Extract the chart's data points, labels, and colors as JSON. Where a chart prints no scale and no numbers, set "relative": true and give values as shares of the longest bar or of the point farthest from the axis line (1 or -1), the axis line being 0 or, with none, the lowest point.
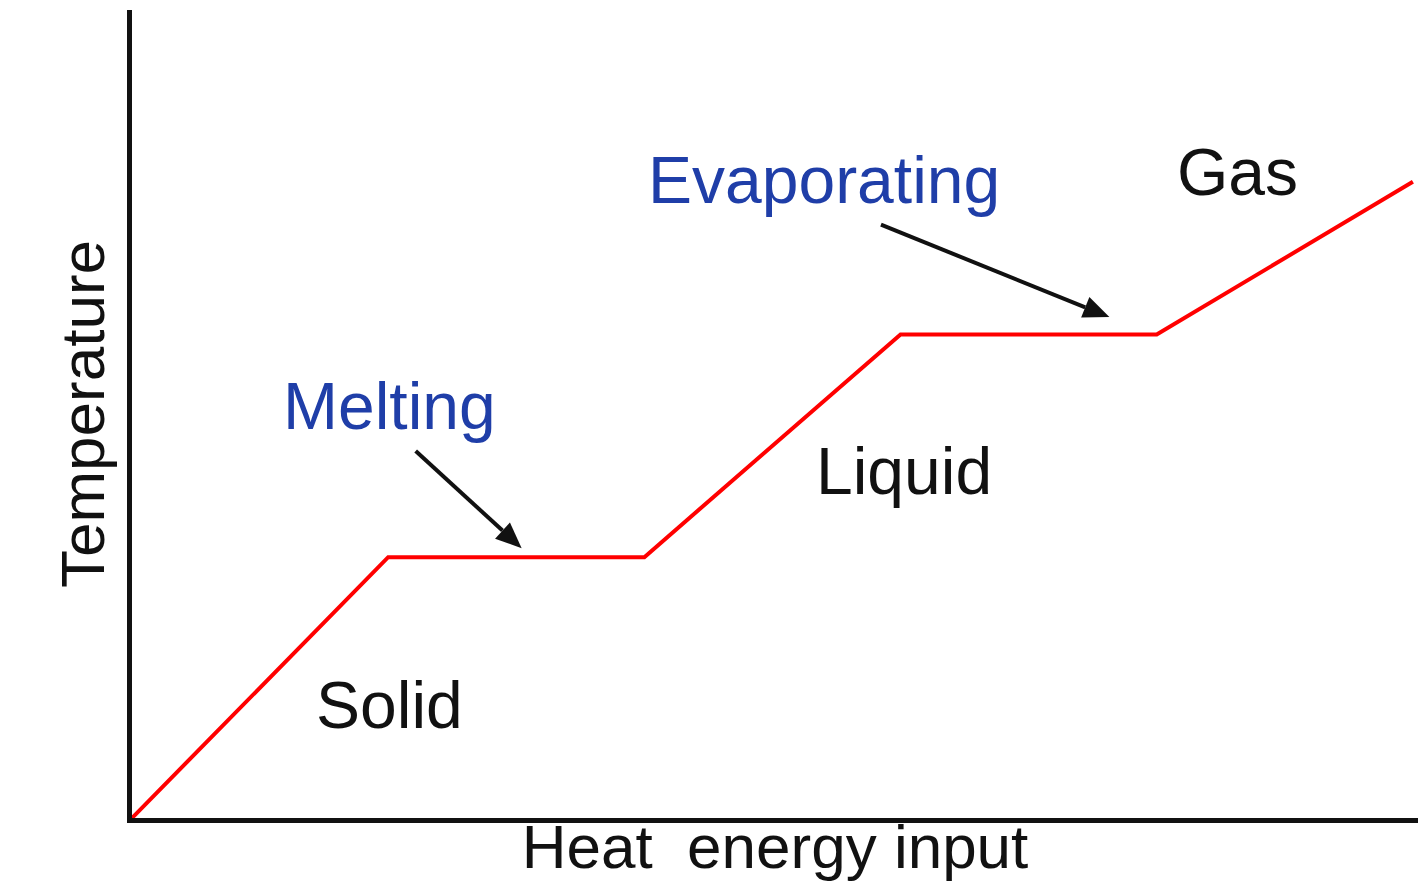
{
  "chart_data": {
    "type": "line",
    "relative": true,
    "xlabel": "Heat  energy input",
    "ylabel": "Temperature",
    "categories": [
      null,
      null,
      null,
      null,
      null,
      null
    ],
    "series": [
      {
        "color": "#ff0000",
        "values": [
          0,
          0.41,
          0.41,
          0.76,
          0.76,
          1
        ]
      }
    ],
    "annotations": [
      "Solid",
      "Melting",
      "Liquid",
      "Evaporating",
      "Gas"
    ],
    "grid": false,
    "marker": "none",
    "line_style": "solid"
  }
}
